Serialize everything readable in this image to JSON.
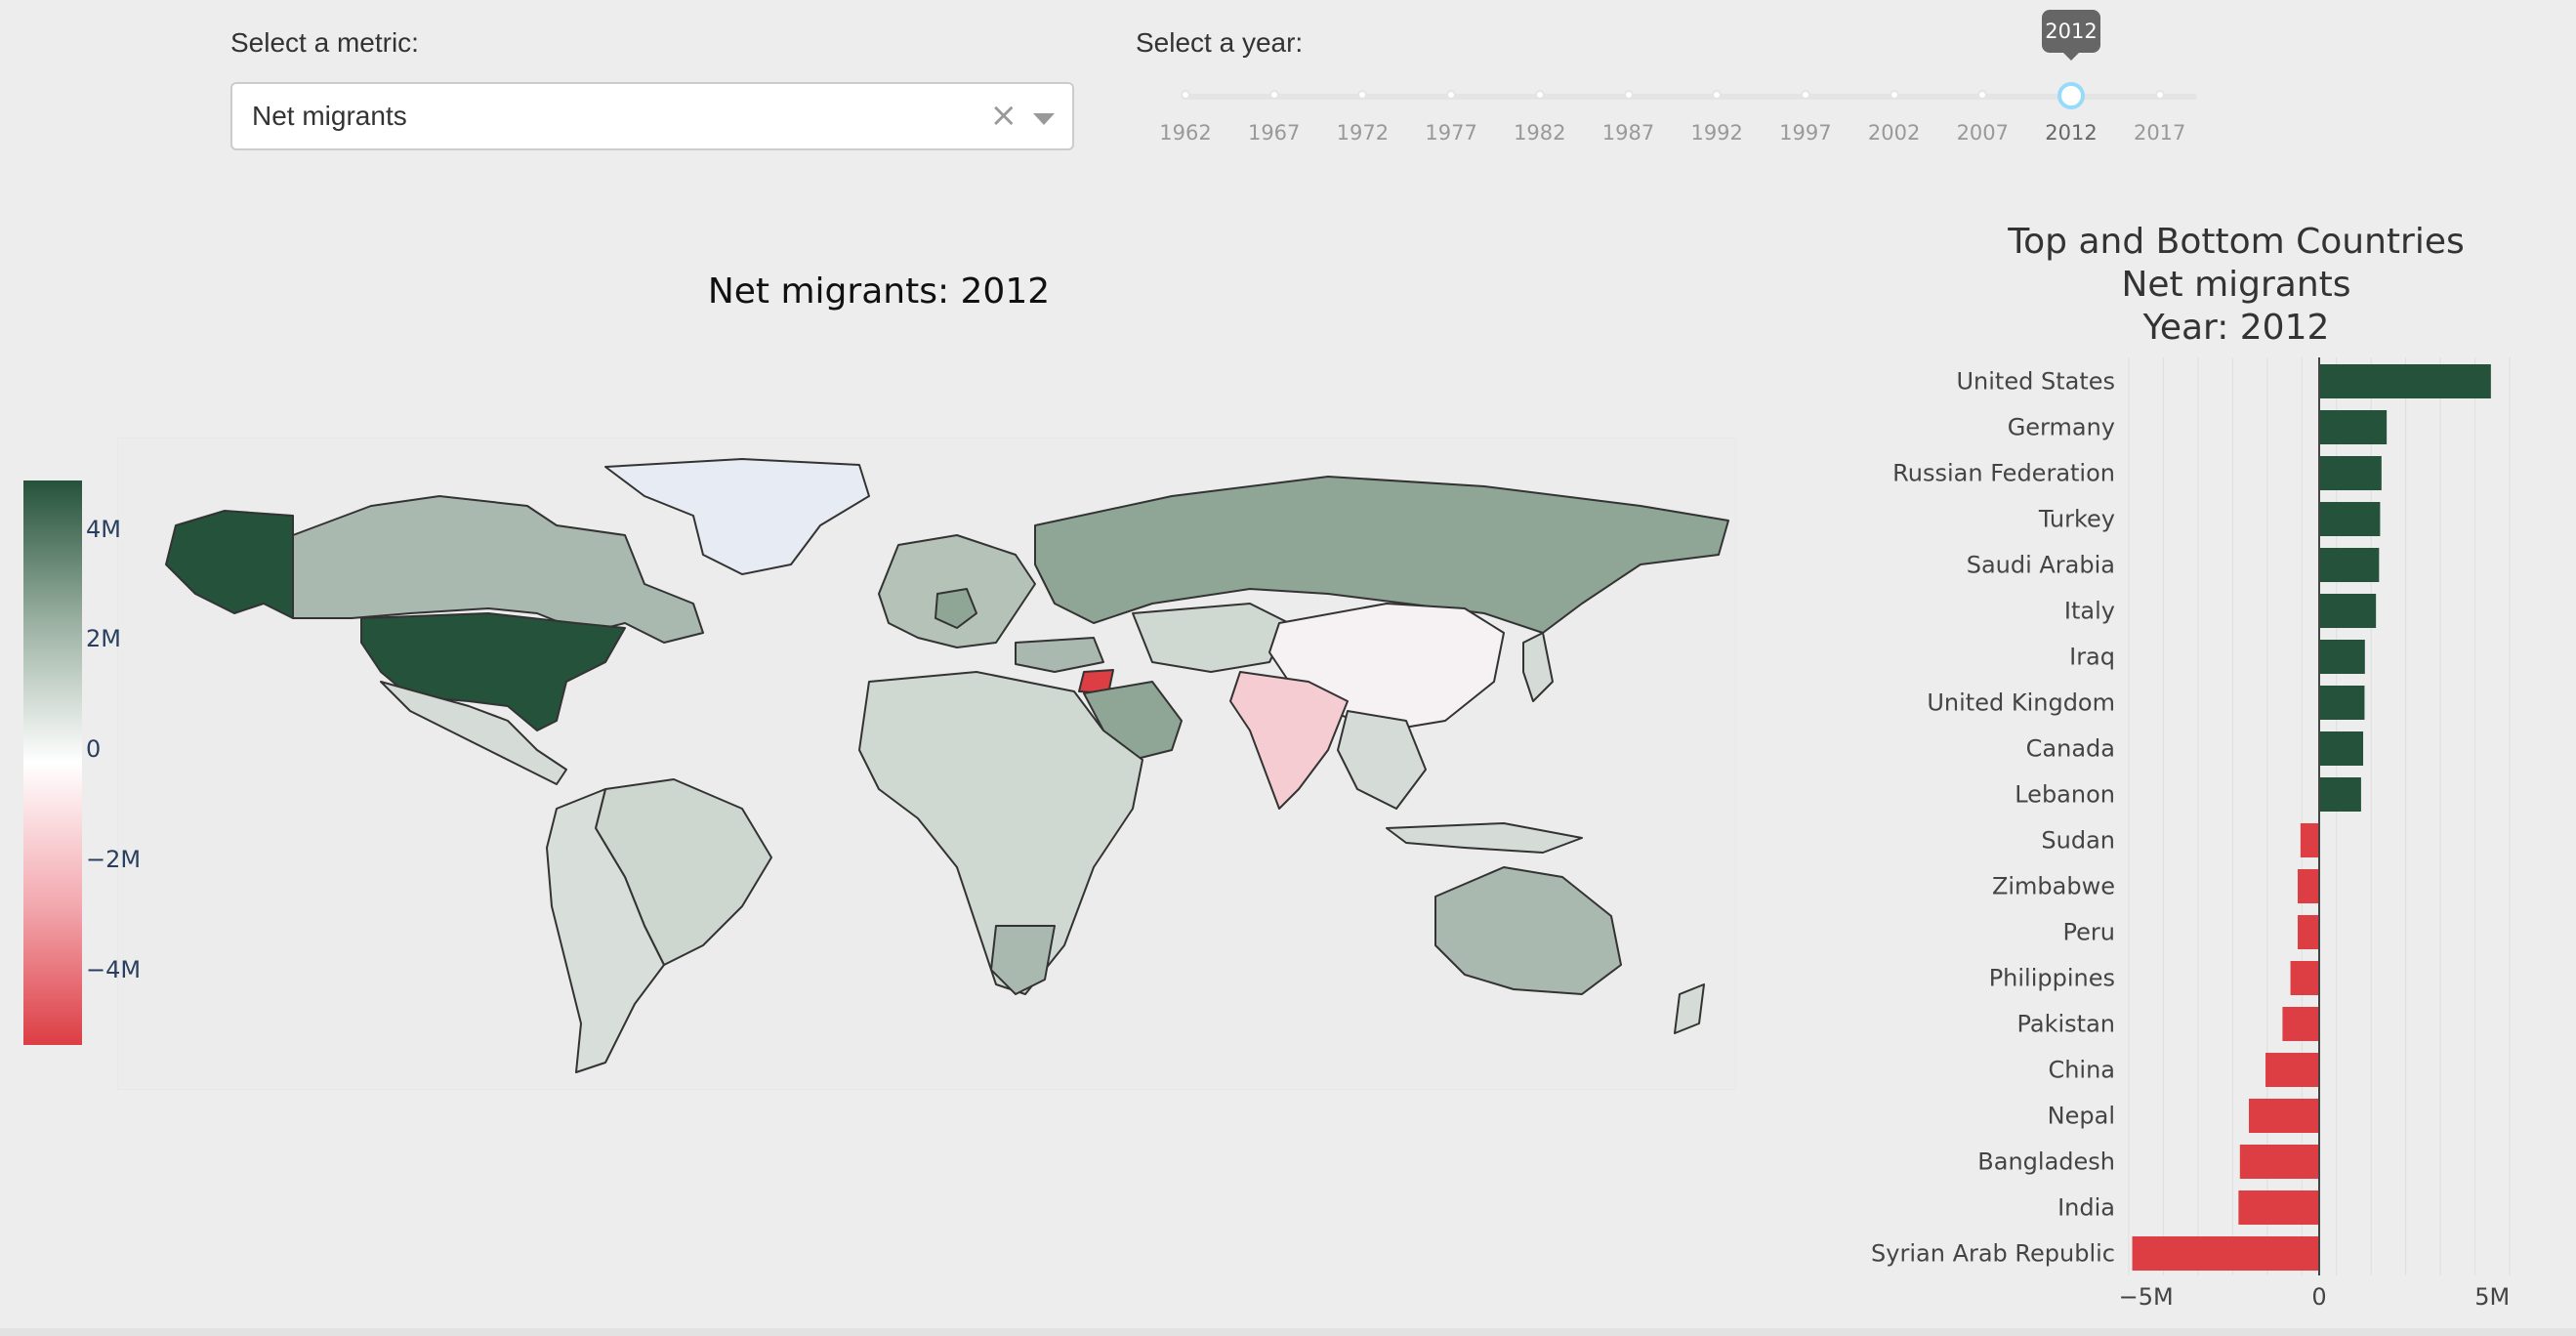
{
  "controls": {
    "metric_label": "Select a metric:",
    "metric_value": "Net migrants",
    "metric_clear": "×",
    "year_label": "Select a year:",
    "year_marks": [
      "1962",
      "1967",
      "1972",
      "1977",
      "1982",
      "1987",
      "1992",
      "1997",
      "2002",
      "2007",
      "2012",
      "2017"
    ],
    "year_selected": "2012",
    "year_selected_index": 10
  },
  "map": {
    "title": "Net migrants: 2012",
    "colorscale": [
      "#25523a",
      "#ffffff",
      "#dc3e44"
    ],
    "colorbar_ticks": [
      "4M",
      "2M",
      "0",
      "−2M",
      "−4M"
    ]
  },
  "chart_data": {
    "type": "bar",
    "orientation": "horizontal",
    "title": "Top and Bottom Countries",
    "subtitle_lines": [
      "Net migrants",
      "Year: 2012"
    ],
    "categories": [
      "United States",
      "Germany",
      "Russian Federation",
      "Turkey",
      "Saudi Arabia",
      "Italy",
      "Iraq",
      "United Kingdom",
      "Canada",
      "Lebanon",
      "Sudan",
      "Zimbabwe",
      "Peru",
      "Philippines",
      "Pakistan",
      "China",
      "Nepal",
      "Bangladesh",
      "India",
      "Syrian Arab Republic"
    ],
    "values": [
      4960000,
      1950000,
      1800000,
      1760000,
      1730000,
      1640000,
      1320000,
      1310000,
      1270000,
      1210000,
      -540000,
      -620000,
      -620000,
      -830000,
      -1060000,
      -1550000,
      -2030000,
      -2290000,
      -2330000,
      -5400000
    ],
    "colors": {
      "positive": "#25523a",
      "negative": "#dc3e44"
    },
    "xlim": [
      -5500000,
      5500000
    ],
    "xticks": [
      {
        "value": -5000000,
        "label": "−5M"
      },
      {
        "value": 0,
        "label": "0"
      },
      {
        "value": 5000000,
        "label": "5M"
      }
    ],
    "grid": true
  }
}
